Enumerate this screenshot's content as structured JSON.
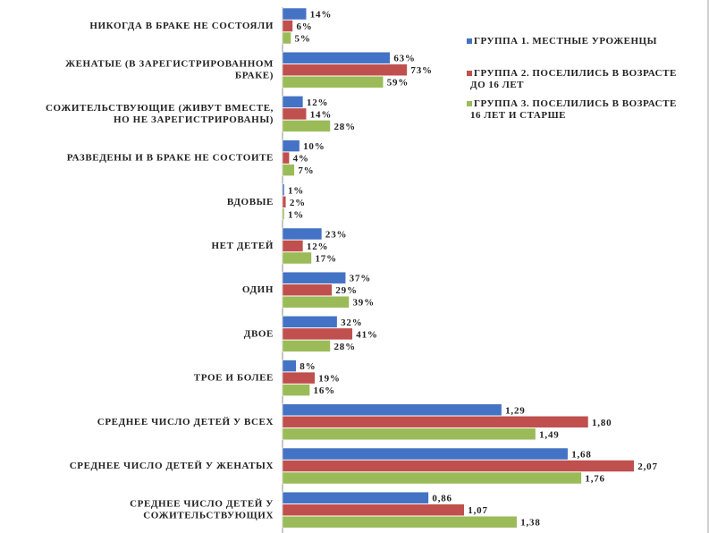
{
  "chart_data": {
    "type": "bar",
    "orientation": "horizontal",
    "grid": false,
    "legend_placement": "top-right",
    "categories": [
      [
        "НИКОГДА В БРАКЕ НЕ СОСТОЯЛИ"
      ],
      [
        "ЖЕНАТЫЕ (В ЗАРЕГИСТРИРОВАННОМ",
        "БРАКЕ)"
      ],
      [
        "СОЖИТЕЛЬСТВУЮЩИЕ (ЖИВУТ ВМЕСТЕ,",
        "НО НЕ ЗАРЕГИСТРИРОВАНЫ)"
      ],
      [
        "РАЗВЕДЕНЫ И В БРАКЕ НЕ СОСТОИТЕ"
      ],
      [
        "ВДОВЫЕ"
      ],
      [
        "НЕТ ДЕТЕЙ"
      ],
      [
        "ОДИН"
      ],
      [
        "ДВОЕ"
      ],
      [
        "ТРОЕ И БОЛЕЕ"
      ],
      [
        "СРЕДНЕЕ ЧИСЛО ДЕТЕЙ У ВСЕХ"
      ],
      [
        "СРЕДНЕЕ ЧИСЛО ДЕТЕЙ У ЖЕНАТЫХ"
      ],
      [
        "СРЕДНЕЕ ЧИСЛО ДЕТЕЙ У",
        "СОЖИТЕЛЬСТВУЮЩИХ"
      ]
    ],
    "series": [
      {
        "name": [
          "ГРУППА 1. МЕСТНЫЕ УРОЖЕНЦЫ"
        ],
        "color": "#4472c4",
        "values": [
          14,
          63,
          12,
          10,
          1,
          23,
          37,
          32,
          8,
          1.29,
          1.68,
          0.86
        ],
        "labels": [
          "14%",
          "63%",
          "12%",
          "10%",
          "1%",
          "23%",
          "37%",
          "32%",
          "8%",
          "1,29",
          "1,68",
          "0,86"
        ]
      },
      {
        "name": [
          "ГРУППА 2. ПОСЕЛИЛИСЬ В ВОЗРАСТЕ",
          "ДО 16 ЛЕТ"
        ],
        "color": "#c0504d",
        "values": [
          6,
          73,
          14,
          4,
          2,
          12,
          29,
          41,
          19,
          1.8,
          2.07,
          1.07
        ],
        "labels": [
          "6%",
          "73%",
          "14%",
          "4%",
          "2%",
          "12%",
          "29%",
          "41%",
          "19%",
          "1,80",
          "2,07",
          "1,07"
        ]
      },
      {
        "name": [
          "ГРУППА 3. ПОСЕЛИЛИСЬ В ВОЗРАСТЕ",
          "16 ЛЕТ И СТАРШЕ"
        ],
        "color": "#9bbb59",
        "values": [
          5,
          59,
          28,
          7,
          1,
          17,
          39,
          28,
          16,
          1.49,
          1.76,
          1.38
        ],
        "labels": [
          "5%",
          "59%",
          "28%",
          "7%",
          "1%",
          "17%",
          "39%",
          "28%",
          "16%",
          "1,49",
          "1,76",
          "1,38"
        ]
      }
    ]
  }
}
